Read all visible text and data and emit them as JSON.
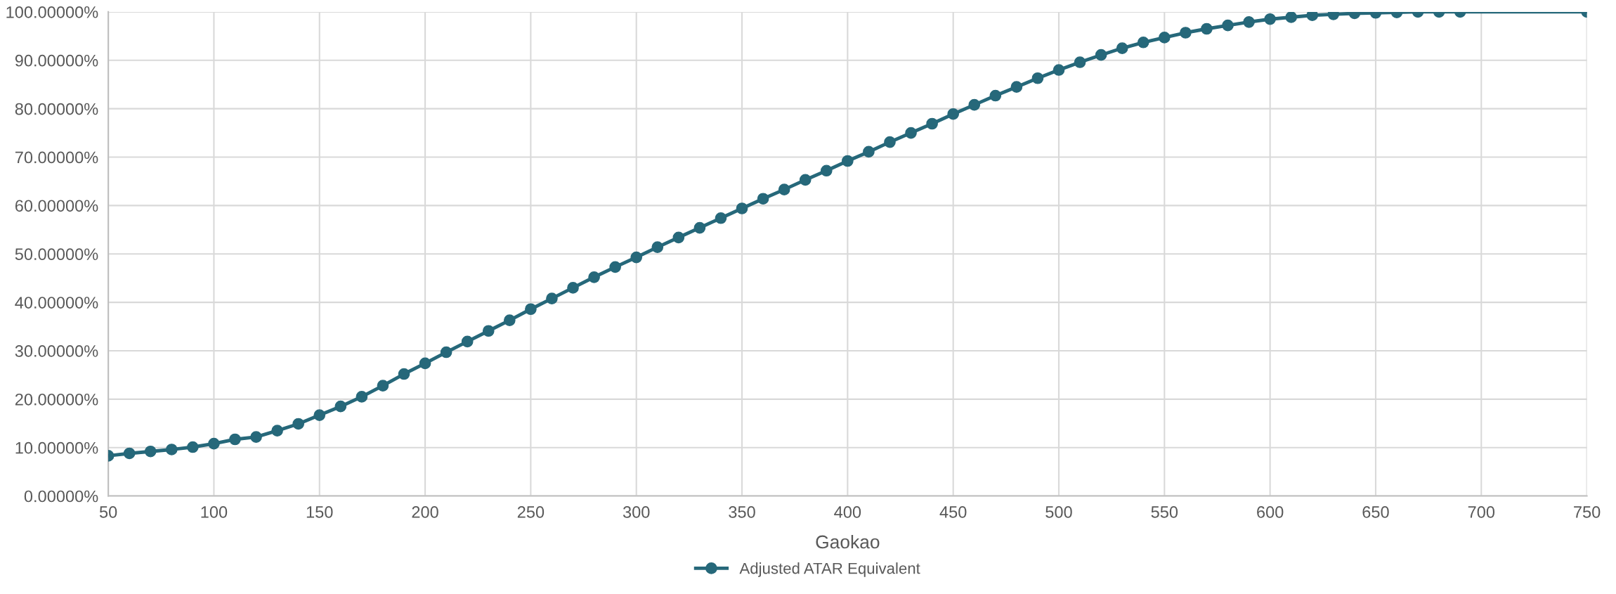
{
  "chart_data": {
    "type": "line",
    "xlabel": "Gaokao",
    "x": [
      50,
      60,
      70,
      80,
      90,
      100,
      110,
      120,
      130,
      140,
      150,
      160,
      170,
      180,
      190,
      200,
      210,
      220,
      230,
      240,
      250,
      260,
      270,
      280,
      290,
      300,
      310,
      320,
      330,
      340,
      350,
      360,
      370,
      380,
      390,
      400,
      410,
      420,
      430,
      440,
      450,
      460,
      470,
      480,
      490,
      500,
      510,
      520,
      530,
      540,
      550,
      560,
      570,
      580,
      590,
      600,
      610,
      620,
      630,
      640,
      650,
      660,
      670,
      680,
      690,
      750
    ],
    "series": [
      {
        "name": "Adjusted ATAR Equivalent",
        "color": "#26687a",
        "values": [
          8.3,
          8.8,
          9.2,
          9.6,
          10.1,
          10.8,
          11.7,
          12.2,
          13.5,
          14.9,
          16.7,
          18.5,
          20.5,
          22.8,
          25.2,
          27.4,
          29.7,
          31.9,
          34.1,
          36.3,
          38.6,
          40.8,
          43.0,
          45.2,
          47.3,
          49.3,
          51.4,
          53.4,
          55.4,
          57.4,
          59.4,
          61.4,
          63.3,
          65.3,
          67.2,
          69.2,
          71.1,
          73.1,
          75.0,
          76.9,
          78.9,
          80.8,
          82.7,
          84.5,
          86.3,
          88.0,
          89.6,
          91.1,
          92.5,
          93.7,
          94.7,
          95.7,
          96.5,
          97.2,
          97.9,
          98.5,
          98.9,
          99.3,
          99.5,
          99.7,
          99.8,
          99.9,
          100,
          100,
          100,
          100
        ]
      }
    ],
    "xlim": [
      50,
      750
    ],
    "xticks": [
      50,
      100,
      150,
      200,
      250,
      300,
      350,
      400,
      450,
      500,
      550,
      600,
      650,
      700,
      750
    ],
    "ylim": [
      0,
      100
    ],
    "yticks": [
      {
        "value": 0,
        "label": "0.00000%"
      },
      {
        "value": 10,
        "label": "10.00000%"
      },
      {
        "value": 20,
        "label": "20.00000%"
      },
      {
        "value": 30,
        "label": "30.00000%"
      },
      {
        "value": 40,
        "label": "40.00000%"
      },
      {
        "value": 50,
        "label": "50.00000%"
      },
      {
        "value": 60,
        "label": "60.00000%"
      },
      {
        "value": 70,
        "label": "70.00000%"
      },
      {
        "value": 80,
        "label": "80.00000%"
      },
      {
        "value": 90,
        "label": "90.00000%"
      },
      {
        "value": 100,
        "label": "100.00000%"
      }
    ],
    "grid": true,
    "legend": "bottom",
    "marker": "circle",
    "line_style": "solid"
  }
}
